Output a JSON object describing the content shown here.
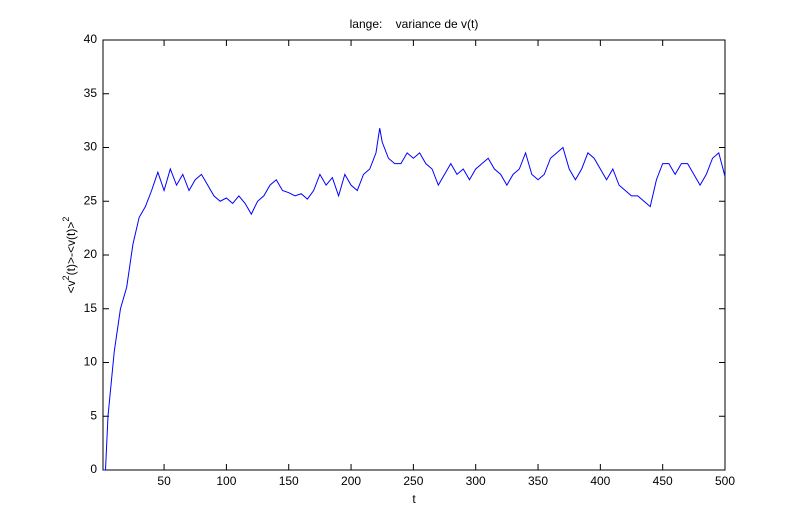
{
  "chart_data": {
    "type": "line",
    "title": "lange:    variance de v(t)",
    "xlabel": "t",
    "ylabel": [
      "<v",
      "2",
      "(t)>-<v(t)>",
      "2"
    ],
    "x": [
      1,
      3,
      5,
      10,
      15,
      20,
      25,
      30,
      35,
      40,
      45,
      50,
      55,
      60,
      65,
      70,
      75,
      80,
      85,
      90,
      95,
      100,
      105,
      110,
      115,
      120,
      125,
      130,
      135,
      140,
      145,
      150,
      155,
      160,
      165,
      170,
      175,
      180,
      185,
      190,
      195,
      200,
      205,
      210,
      215,
      220,
      223,
      225,
      230,
      235,
      240,
      245,
      250,
      255,
      260,
      265,
      270,
      275,
      280,
      285,
      290,
      295,
      300,
      305,
      310,
      315,
      320,
      325,
      330,
      335,
      340,
      345,
      350,
      355,
      360,
      365,
      370,
      375,
      380,
      385,
      390,
      395,
      400,
      405,
      410,
      415,
      420,
      425,
      430,
      435,
      440,
      445,
      450,
      455,
      460,
      465,
      470,
      475,
      480,
      485,
      490,
      495,
      500
    ],
    "series": [
      {
        "name": "variance",
        "color": "#0000ff",
        "values": [
          0,
          0,
          5,
          11,
          15,
          17,
          21,
          23.5,
          24.5,
          26,
          27.7,
          26,
          28,
          26.5,
          27.5,
          26,
          27,
          27.5,
          26.5,
          25.5,
          25,
          25.3,
          24.8,
          25.5,
          24.8,
          23.8,
          25,
          25.5,
          26.5,
          27,
          26,
          25.8,
          25.5,
          25.7,
          25.2,
          26,
          27.5,
          26.5,
          27.2,
          25.5,
          27.5,
          26.5,
          26,
          27.5,
          28,
          29.5,
          31.8,
          30.5,
          29,
          28.5,
          28.5,
          29.5,
          29,
          29.5,
          28.5,
          28,
          26.5,
          27.5,
          28.5,
          27.5,
          28,
          27,
          28,
          28.5,
          29,
          28,
          27.5,
          26.5,
          27.5,
          28,
          29.5,
          27.5,
          27,
          27.5,
          29,
          29.5,
          30,
          28,
          27,
          28,
          29.5,
          29,
          28,
          27,
          28,
          26.5,
          26,
          25.5,
          25.5,
          25,
          24.5,
          27,
          28.5,
          28.5,
          27.5,
          28.5,
          28.5,
          27.5,
          26.5,
          27.5,
          29,
          29.5,
          27.3
        ]
      }
    ],
    "xlim": [
      1,
      500
    ],
    "ylim": [
      0,
      40
    ],
    "xticks": [
      50,
      100,
      150,
      200,
      250,
      300,
      350,
      400,
      450,
      500
    ],
    "yticks": [
      0,
      5,
      10,
      15,
      20,
      25,
      30,
      35,
      40
    ]
  }
}
